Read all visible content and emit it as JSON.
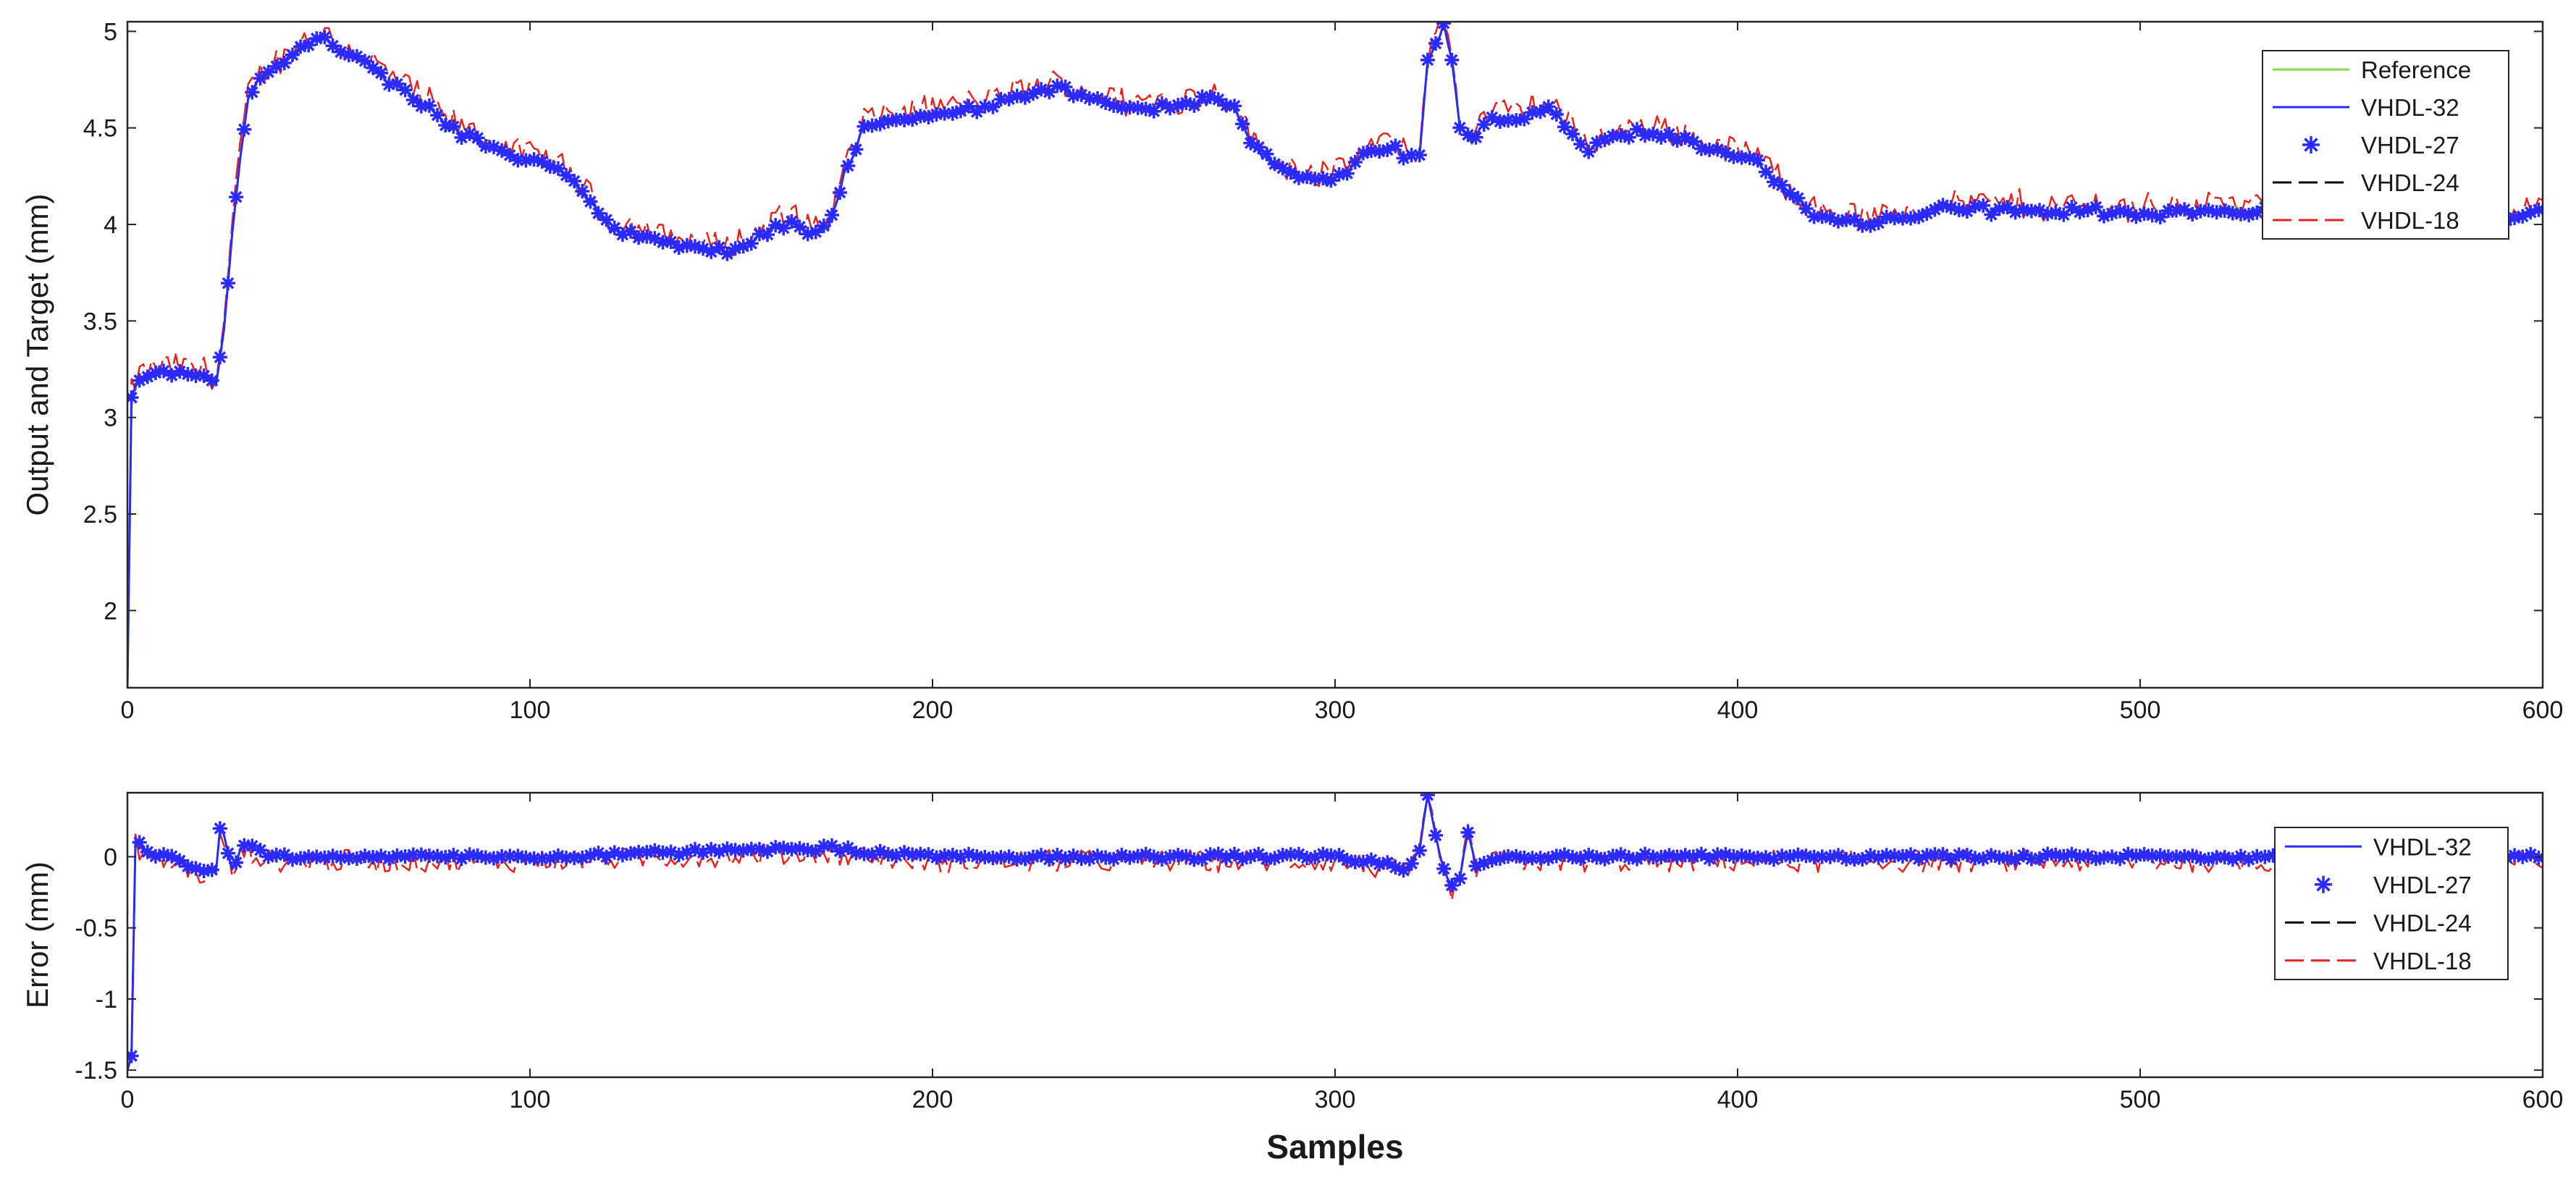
{
  "chart_data": [
    {
      "type": "line",
      "xlabel": "",
      "ylabel": "Output and Target (mm)",
      "xlim": [
        0,
        600
      ],
      "ylim": [
        1.6,
        5.05
      ],
      "xticks": [
        0,
        100,
        200,
        300,
        400,
        500,
        600
      ],
      "yticks": [
        2,
        2.5,
        3,
        3.5,
        4,
        4.5,
        5
      ],
      "xtick_labels": [
        "0",
        "100",
        "200",
        "300",
        "400",
        "500",
        "600"
      ],
      "ytick_labels": [
        "2",
        "2.5",
        "3",
        "3.5",
        "4",
        "4.5",
        "5"
      ],
      "grid": false,
      "legend_position": "top-right",
      "legend": [
        "Reference",
        "VHDL-32",
        "VHDL-27",
        "VHDL-24",
        "VHDL-18"
      ],
      "series_style": [
        {
          "color": "#8fd14f",
          "style": "solid",
          "marker": "none"
        },
        {
          "color": "#2a2aff",
          "style": "solid",
          "marker": "none"
        },
        {
          "color": "#2a2aff",
          "style": "none",
          "marker": "asterisk"
        },
        {
          "color": "#000000",
          "style": "dashed",
          "marker": "none"
        },
        {
          "color": "#e8221c",
          "style": "dashed",
          "marker": "none"
        }
      ],
      "reference_profile": {
        "x": [
          0,
          1,
          2,
          5,
          10,
          15,
          20,
          22,
          24,
          26,
          28,
          30,
          33,
          36,
          40,
          44,
          48,
          52,
          58,
          65,
          72,
          80,
          88,
          96,
          104,
          112,
          120,
          130,
          140,
          148,
          155,
          162,
          166,
          170,
          174,
          178,
          183,
          188,
          195,
          205,
          215,
          225,
          232,
          240,
          250,
          260,
          270,
          275,
          280,
          285,
          290,
          300,
          305,
          310,
          315,
          318,
          321,
          323,
          325,
          327,
          329,
          331,
          334,
          338,
          345,
          352,
          356,
          362,
          370,
          378,
          385,
          392,
          400,
          405,
          410,
          418,
          425,
          432,
          440,
          450,
          460,
          470,
          480,
          490,
          500,
          510,
          520,
          530,
          540,
          550,
          560,
          570,
          580,
          590,
          600
        ],
        "y": [
          1.6,
          3.1,
          3.15,
          3.22,
          3.24,
          3.23,
          3.22,
          3.18,
          3.45,
          3.95,
          4.35,
          4.65,
          4.75,
          4.8,
          4.85,
          4.93,
          4.97,
          4.92,
          4.85,
          4.75,
          4.65,
          4.5,
          4.42,
          4.35,
          4.32,
          4.2,
          3.98,
          3.94,
          3.88,
          3.85,
          3.9,
          4.0,
          4.02,
          3.95,
          3.98,
          4.25,
          4.5,
          4.55,
          4.55,
          4.58,
          4.62,
          4.68,
          4.7,
          4.65,
          4.6,
          4.62,
          4.65,
          4.6,
          4.4,
          4.3,
          4.26,
          4.22,
          4.32,
          4.38,
          4.4,
          4.35,
          4.35,
          4.85,
          4.95,
          5.03,
          4.85,
          4.5,
          4.42,
          4.55,
          4.55,
          4.6,
          4.55,
          4.38,
          4.45,
          4.48,
          4.45,
          4.4,
          4.36,
          4.32,
          4.22,
          4.06,
          4.03,
          4.0,
          4.03,
          4.08,
          4.08,
          4.07,
          4.06,
          4.07,
          4.05,
          4.07,
          4.08,
          4.07,
          4.05,
          4.03,
          4.02,
          4.03,
          4.04,
          4.04,
          4.06
        ]
      }
    },
    {
      "type": "line",
      "xlabel": "Samples",
      "ylabel": "Error (mm)",
      "xlim": [
        0,
        600
      ],
      "ylim": [
        -1.55,
        0.45
      ],
      "xticks": [
        0,
        100,
        200,
        300,
        400,
        500,
        600
      ],
      "yticks": [
        -1.5,
        -1,
        -0.5,
        0
      ],
      "xtick_labels": [
        "0",
        "100",
        "200",
        "300",
        "400",
        "500",
        "600"
      ],
      "ytick_labels": [
        "-1.5",
        "-1",
        "-0.5",
        "0"
      ],
      "grid": false,
      "legend_position": "top-right",
      "legend": [
        "VHDL-32",
        "VHDL-27",
        "VHDL-24",
        "VHDL-18"
      ],
      "series_style": [
        {
          "color": "#2a2aff",
          "style": "solid",
          "marker": "none"
        },
        {
          "color": "#2a2aff",
          "style": "none",
          "marker": "asterisk"
        },
        {
          "color": "#000000",
          "style": "dashed",
          "marker": "none"
        },
        {
          "color": "#e8221c",
          "style": "dashed",
          "marker": "none"
        }
      ],
      "error_profile": {
        "x": [
          0,
          1,
          2,
          5,
          10,
          15,
          18,
          20,
          22,
          23,
          24,
          26,
          28,
          30,
          35,
          100,
          175,
          180,
          200,
          300,
          318,
          321,
          323,
          325,
          327,
          329,
          331,
          333,
          335,
          340,
          400,
          500,
          600
        ],
        "y": [
          -1.5,
          -1.4,
          0.12,
          0.02,
          0.0,
          -0.05,
          -0.1,
          -0.08,
          -0.12,
          0.2,
          0.15,
          -0.1,
          0.05,
          0.08,
          0.0,
          0.0,
          0.06,
          0.04,
          0.0,
          0.0,
          -0.08,
          0.05,
          0.42,
          0.15,
          -0.1,
          -0.2,
          -0.15,
          0.18,
          -0.05,
          0.0,
          0.0,
          0.0,
          0.0
        ]
      }
    }
  ]
}
